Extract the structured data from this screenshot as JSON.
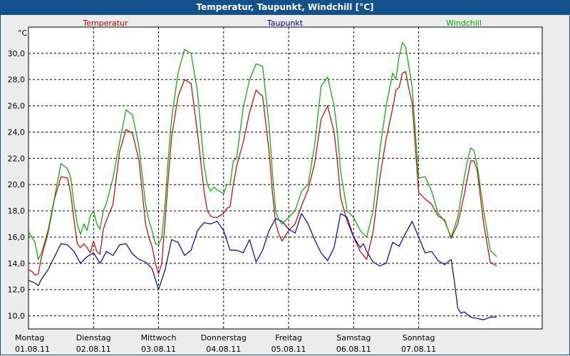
{
  "window": {
    "title": "Temperatur, Taupunkt, Windchill [°C]"
  },
  "chart_data": {
    "type": "line",
    "ylabel": "°C",
    "ylim": [
      9.0,
      32.0
    ],
    "y_ticks": [
      "10,0",
      "12,0",
      "14,0",
      "16,0",
      "18,0",
      "20,0",
      "22,0",
      "24,0",
      "26,0",
      "28,0",
      "30,0"
    ],
    "y_tick_values": [
      10,
      12,
      14,
      16,
      18,
      20,
      22,
      24,
      26,
      28,
      30
    ],
    "xlim": [
      0,
      7.9
    ],
    "grid": true,
    "x_labels": [
      {
        "x": 0,
        "day": "Montag",
        "date": "01.08.11"
      },
      {
        "x": 1,
        "day": "Dienstag",
        "date": "02.08.11"
      },
      {
        "x": 2,
        "day": "Mittwoch",
        "date": "03.08.11"
      },
      {
        "x": 3,
        "day": "Donnerstag",
        "date": "04.08.11"
      },
      {
        "x": 4,
        "day": "Freitag",
        "date": "05.08.11"
      },
      {
        "x": 5,
        "day": "Samstag",
        "date": "06.08.11"
      },
      {
        "x": 6,
        "day": "Sonntag",
        "date": "07.08.11"
      }
    ],
    "series": [
      {
        "name": "Temperatur",
        "color": "#cc0000",
        "x": [
          0,
          0.05,
          0.1,
          0.15,
          0.2,
          0.3,
          0.4,
          0.5,
          0.6,
          0.65,
          0.7,
          0.75,
          0.8,
          0.85,
          0.9,
          0.95,
          1.0,
          1.05,
          1.1,
          1.15,
          1.2,
          1.3,
          1.4,
          1.5,
          1.6,
          1.7,
          1.8,
          1.85,
          1.9,
          1.95,
          2.0,
          2.05,
          2.1,
          2.15,
          2.2,
          2.3,
          2.4,
          2.5,
          2.6,
          2.7,
          2.75,
          2.8,
          2.85,
          2.9,
          3.0,
          3.05,
          3.1,
          3.15,
          3.2,
          3.3,
          3.4,
          3.5,
          3.6,
          3.7,
          3.75,
          3.8,
          3.85,
          3.9,
          4.0,
          4.1,
          4.2,
          4.3,
          4.4,
          4.5,
          4.6,
          4.7,
          4.75,
          4.8,
          4.9,
          5.0,
          5.1,
          5.2,
          5.3,
          5.4,
          5.5,
          5.6,
          5.65,
          5.7,
          5.75,
          5.8,
          5.85,
          5.9,
          6.0,
          6.1,
          6.2,
          6.3,
          6.4,
          6.5,
          6.6,
          6.7,
          6.75,
          6.8,
          6.85,
          6.9,
          7.0,
          7.1,
          7.2
        ],
        "y": [
          13.5,
          13.4,
          13.1,
          13.2,
          14.5,
          16.3,
          18.9,
          20.6,
          20.5,
          19.3,
          17.3,
          15.5,
          15.2,
          15.5,
          15.2,
          14.8,
          15.7,
          14.9,
          14.7,
          16.6,
          17.3,
          18.5,
          22.5,
          24.2,
          23.9,
          21.8,
          17.0,
          16.0,
          15.3,
          14.0,
          13.2,
          14.0,
          17.2,
          20.5,
          23.6,
          26.7,
          28.0,
          27.7,
          23.9,
          19.5,
          18.0,
          17.6,
          17.5,
          17.5,
          17.8,
          18.2,
          18.3,
          20.0,
          21.4,
          23.2,
          25.5,
          27.2,
          26.7,
          22.5,
          19.5,
          17.1,
          16.2,
          15.7,
          16.5,
          17.0,
          18.4,
          19.6,
          21.6,
          25.0,
          26.0,
          24.0,
          21.8,
          19.0,
          17.2,
          16.0,
          14.9,
          14.3,
          16.4,
          20.4,
          23.5,
          25.8,
          27.2,
          27.4,
          28.5,
          28.6,
          27.3,
          26.2,
          19.4,
          18.9,
          18.5,
          17.6,
          17.3,
          15.9,
          17.0,
          19.2,
          20.5,
          21.8,
          21.8,
          21.1,
          17.0,
          14.1,
          13.8
        ]
      },
      {
        "name": "Taupunkt",
        "color": "#0000aa",
        "x": [
          0,
          0.1,
          0.15,
          0.2,
          0.3,
          0.4,
          0.5,
          0.6,
          0.7,
          0.8,
          0.9,
          1.0,
          1.1,
          1.2,
          1.3,
          1.4,
          1.5,
          1.6,
          1.7,
          1.8,
          1.9,
          1.95,
          2.0,
          2.1,
          2.2,
          2.3,
          2.4,
          2.5,
          2.6,
          2.7,
          2.8,
          2.9,
          3.0,
          3.1,
          3.2,
          3.3,
          3.4,
          3.5,
          3.6,
          3.7,
          3.8,
          3.9,
          4.0,
          4.1,
          4.2,
          4.3,
          4.4,
          4.5,
          4.6,
          4.7,
          4.8,
          4.9,
          5.0,
          5.1,
          5.15,
          5.2,
          5.3,
          5.4,
          5.5,
          5.6,
          5.7,
          5.8,
          5.9,
          6.0,
          6.1,
          6.2,
          6.3,
          6.4,
          6.5,
          6.55,
          6.6,
          6.65,
          6.7,
          6.8,
          6.9,
          7.0,
          7.1,
          7.2
        ],
        "y": [
          12.7,
          12.5,
          12.3,
          12.8,
          13.5,
          14.5,
          15.5,
          15.4,
          14.9,
          14.0,
          14.5,
          14.8,
          14.0,
          14.9,
          14.6,
          15.4,
          15.5,
          14.7,
          14.3,
          14.1,
          13.6,
          12.8,
          12.0,
          13.5,
          15.8,
          15.6,
          14.6,
          15.0,
          16.5,
          17.1,
          17.0,
          17.2,
          16.5,
          15.0,
          15.0,
          14.8,
          15.8,
          14.1,
          15.0,
          16.5,
          17.4,
          17.2,
          16.6,
          16.3,
          17.8,
          17.0,
          15.8,
          14.8,
          14.2,
          15.2,
          17.8,
          17.5,
          16.0,
          15.2,
          15.5,
          14.9,
          14.1,
          13.8,
          14.0,
          15.6,
          15.3,
          16.3,
          17.2,
          16.0,
          14.8,
          14.9,
          14.2,
          13.9,
          14.3,
          12.6,
          10.6,
          10.2,
          10.3,
          9.9,
          9.8,
          9.7,
          9.9,
          9.9
        ]
      },
      {
        "name": "Windchill",
        "color": "#00aa00",
        "x": [
          0,
          0.05,
          0.1,
          0.15,
          0.2,
          0.3,
          0.4,
          0.5,
          0.6,
          0.65,
          0.7,
          0.75,
          0.8,
          0.85,
          0.9,
          0.95,
          1.0,
          1.05,
          1.1,
          1.15,
          1.2,
          1.3,
          1.4,
          1.5,
          1.6,
          1.7,
          1.8,
          1.85,
          1.9,
          1.95,
          2.0,
          2.05,
          2.1,
          2.15,
          2.2,
          2.3,
          2.4,
          2.5,
          2.6,
          2.7,
          2.75,
          2.8,
          2.85,
          2.9,
          3.0,
          3.05,
          3.1,
          3.15,
          3.2,
          3.3,
          3.4,
          3.5,
          3.6,
          3.7,
          3.75,
          3.8,
          3.85,
          3.9,
          4.0,
          4.1,
          4.2,
          4.3,
          4.4,
          4.5,
          4.6,
          4.7,
          4.75,
          4.8,
          4.9,
          5.0,
          5.1,
          5.2,
          5.3,
          5.4,
          5.5,
          5.6,
          5.65,
          5.7,
          5.75,
          5.8,
          5.85,
          5.9,
          6.0,
          6.1,
          6.2,
          6.3,
          6.4,
          6.5,
          6.6,
          6.7,
          6.75,
          6.8,
          6.85,
          6.9,
          7.0,
          7.1,
          7.2
        ],
        "y": [
          16.4,
          16.0,
          15.6,
          14.3,
          14.8,
          16.5,
          19.0,
          21.6,
          21.2,
          20.5,
          18.5,
          17.0,
          16.2,
          17.0,
          16.5,
          17.6,
          18.0,
          17.0,
          16.6,
          18.0,
          18.6,
          20.5,
          23.2,
          25.7,
          25.3,
          22.8,
          18.5,
          17.3,
          16.5,
          15.5,
          15.4,
          16.0,
          18.5,
          22.0,
          25.0,
          28.5,
          30.3,
          30.0,
          27.0,
          21.5,
          20.0,
          19.5,
          19.8,
          19.6,
          19.3,
          20.0,
          20.0,
          21.8,
          22.0,
          25.8,
          28.0,
          29.2,
          29.0,
          24.5,
          21.0,
          18.0,
          17.3,
          17.0,
          17.5,
          18.0,
          19.5,
          20.0,
          23.0,
          27.5,
          28.2,
          26.0,
          24.0,
          21.0,
          18.0,
          17.5,
          16.5,
          16.0,
          18.0,
          22.5,
          26.0,
          28.5,
          28.0,
          29.8,
          30.8,
          30.5,
          29.0,
          27.4,
          20.5,
          20.6,
          19.5,
          17.8,
          17.2,
          16.0,
          17.5,
          20.5,
          21.8,
          22.8,
          22.6,
          21.5,
          18.0,
          15.0,
          14.5
        ]
      }
    ]
  }
}
